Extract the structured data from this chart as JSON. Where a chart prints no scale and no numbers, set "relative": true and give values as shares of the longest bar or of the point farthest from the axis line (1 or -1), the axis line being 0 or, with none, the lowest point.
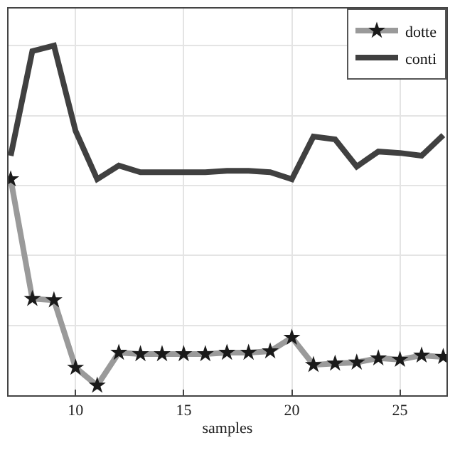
{
  "chart_data": {
    "type": "line",
    "relative": true,
    "xlabel": "samples",
    "x": [
      7,
      8,
      9,
      10,
      11,
      12,
      13,
      14,
      15,
      16,
      17,
      18,
      19,
      20,
      21,
      22,
      23,
      24,
      25,
      26,
      27
    ],
    "xlim": [
      6.9,
      27.15
    ],
    "xticks": [
      10,
      15,
      20,
      25
    ],
    "grid": true,
    "legend": "top right",
    "series": [
      {
        "name": "dotte",
        "color": "#9a9a9a",
        "marker": "star",
        "values": [
          0.618,
          0.276,
          0.272,
          0.079,
          0.028,
          0.122,
          0.118,
          0.118,
          0.118,
          0.118,
          0.122,
          0.122,
          0.126,
          0.165,
          0.087,
          0.091,
          0.094,
          0.106,
          0.102,
          0.114,
          0.11
        ]
      },
      {
        "name": "conti",
        "color": "#404040",
        "marker": "none",
        "values": [
          0.685,
          0.984,
          1,
          0.756,
          0.618,
          0.657,
          0.638,
          0.638,
          0.638,
          0.638,
          0.642,
          0.642,
          0.638,
          0.618,
          0.74,
          0.732,
          0.654,
          0.697,
          0.693,
          0.685,
          0.744
        ]
      }
    ]
  }
}
